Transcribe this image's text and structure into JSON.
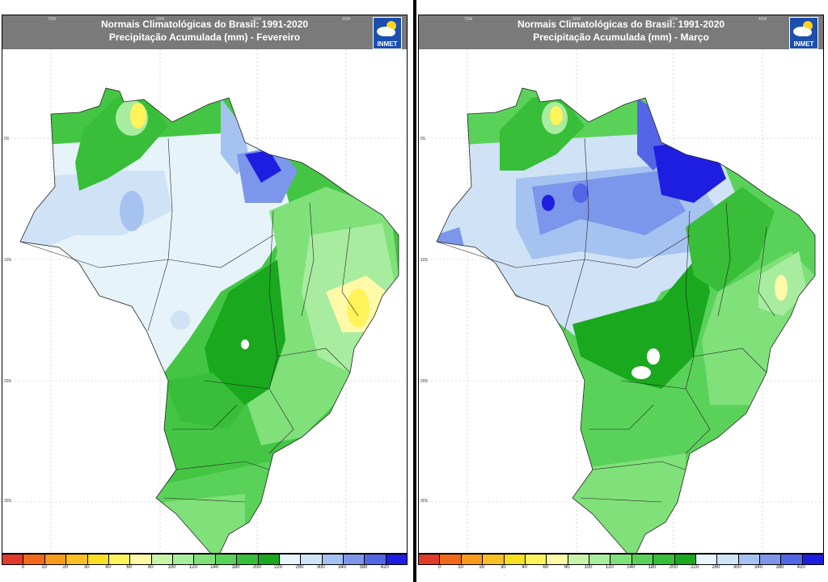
{
  "panels": [
    {
      "title": "Normais Climatológicas do Brasil: 1991-2020",
      "subtitle": "Precipitação Acumulada (mm) - Fevereiro"
    },
    {
      "title": "Normais Climatológicas do Brasil: 1991-2020",
      "subtitle": "Precipitação Acumulada (mm) - Março"
    }
  ],
  "logo": {
    "text": "INMET",
    "icon": "cloud-sun-icon"
  },
  "lon_ticks": [
    "70W",
    "60W",
    "50W",
    "40W"
  ],
  "lat_ticks": [
    "0S",
    "10S",
    "20S",
    "30S"
  ],
  "legend": {
    "labels": [
      "0",
      "10",
      "20",
      "30",
      "40",
      "60",
      "80",
      "100",
      "120",
      "140",
      "180",
      "200",
      "220",
      "260",
      "300",
      "340",
      "380",
      "420"
    ],
    "colors": [
      "#e03a2a",
      "#f06a1a",
      "#f89a1a",
      "#f8c020",
      "#f8e020",
      "#fff35a",
      "#fff9a8",
      "#c8f4a8",
      "#a8eca0",
      "#80e07a",
      "#5ad25a",
      "#38be38",
      "#1aa81e",
      "#e8f6fb",
      "#cfe4f7",
      "#a6c2f0",
      "#7b96ea",
      "#5466e6",
      "#1e1ee0"
    ]
  }
}
